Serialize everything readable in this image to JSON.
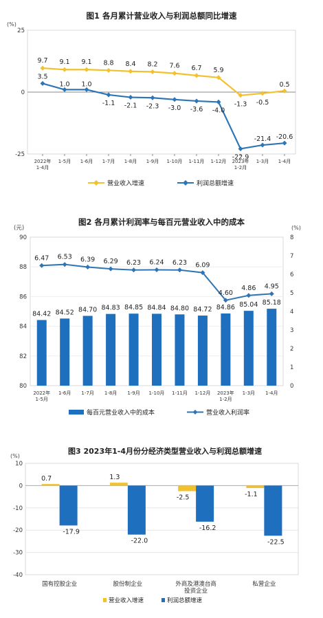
{
  "colors": {
    "revenue": "#f2c12e",
    "profit": "#2e75b6",
    "bar_blue": "#1f6fbf",
    "grid": "#d9d9d9",
    "axis": "#888888"
  },
  "chart_data": [
    {
      "type": "line",
      "title": "图1  各月累计营业收入与利润总额同比增速",
      "yunit": "(%)",
      "ylim": [
        -25,
        25
      ],
      "yticks": [
        "25",
        "0",
        "-25"
      ],
      "categories": [
        {
          "l1": "2022年",
          "l2": "1-4月"
        },
        {
          "l1": "1-5月",
          "l2": ""
        },
        {
          "l1": "1-6月",
          "l2": ""
        },
        {
          "l1": "1-7月",
          "l2": ""
        },
        {
          "l1": "1-8月",
          "l2": ""
        },
        {
          "l1": "1-9月",
          "l2": ""
        },
        {
          "l1": "1-10月",
          "l2": ""
        },
        {
          "l1": "1-11月",
          "l2": ""
        },
        {
          "l1": "1-12月",
          "l2": ""
        },
        {
          "l1": "2023年",
          "l2": "1-2月"
        },
        {
          "l1": "1-3月",
          "l2": ""
        },
        {
          "l1": "1-4月",
          "l2": ""
        }
      ],
      "series": [
        {
          "name": "营业收入增速",
          "values": [
            9.7,
            9.1,
            9.1,
            8.8,
            8.4,
            8.2,
            7.6,
            6.7,
            5.9,
            -1.3,
            -0.5,
            0.5
          ],
          "labels": [
            "9.7",
            "9.1",
            "9.1",
            "8.8",
            "8.4",
            "8.2",
            "7.6",
            "6.7",
            "5.9",
            "-1.3",
            "-0.5",
            "0.5"
          ]
        },
        {
          "name": "利润总额增速",
          "values": [
            3.5,
            1.0,
            1.0,
            -1.1,
            -2.1,
            -2.3,
            -3.0,
            -3.6,
            -4.0,
            -22.9,
            -21.4,
            -20.6
          ],
          "labels": [
            "3.5",
            "1.0",
            "1.0",
            "-1.1",
            "-2.1",
            "-2.3",
            "-3.0",
            "-3.6",
            "-4.0",
            "-22.9",
            "-21.4",
            "-20.6"
          ]
        }
      ],
      "legend": "bottom"
    },
    {
      "type": "bar+line",
      "title": "图2  各月累计利润率与每百元营业收入中的成本",
      "yunit_left": "(元)",
      "yunit_right": "(%)",
      "ylim_left": [
        80,
        90
      ],
      "ylim_right": [
        0,
        8
      ],
      "yticks_left": [
        "90",
        "88",
        "86",
        "84",
        "82",
        "80"
      ],
      "yticks_right": [
        "8",
        "7",
        "6",
        "5",
        "4",
        "3",
        "2",
        "1",
        "0"
      ],
      "categories": [
        {
          "l1": "2022年",
          "l2": "1-5月"
        },
        {
          "l1": "1-6月",
          "l2": ""
        },
        {
          "l1": "1-7月",
          "l2": ""
        },
        {
          "l1": "1-8月",
          "l2": ""
        },
        {
          "l1": "1-9月",
          "l2": ""
        },
        {
          "l1": "1-10月",
          "l2": ""
        },
        {
          "l1": "1-11月",
          "l2": ""
        },
        {
          "l1": "1-12月",
          "l2": ""
        },
        {
          "l1": "2023年",
          "l2": "1-2月"
        },
        {
          "l1": "1-3月",
          "l2": ""
        },
        {
          "l1": "1-4月",
          "l2": ""
        }
      ],
      "series": [
        {
          "name": "每百元营业收入中的成本",
          "values": [
            84.42,
            84.52,
            84.7,
            84.83,
            84.85,
            84.84,
            84.8,
            84.72,
            84.86,
            85.04,
            85.18
          ],
          "labels": [
            "84.42",
            "84.52",
            "84.70",
            "84.83",
            "84.85",
            "84.84",
            "84.80",
            "84.72",
            "84.86",
            "85.04",
            "85.18"
          ]
        },
        {
          "name": "营业收入利润率",
          "values": [
            6.47,
            6.53,
            6.39,
            6.29,
            6.23,
            6.24,
            6.23,
            6.09,
            4.6,
            4.86,
            4.95
          ],
          "labels": [
            "6.47",
            "6.53",
            "6.39",
            "6.29",
            "6.23",
            "6.24",
            "6.23",
            "6.09",
            "4.60",
            "4.86",
            "4.95"
          ]
        }
      ],
      "legend": "bottom"
    },
    {
      "type": "bar",
      "title": "图3  2023年1-4月份分经济类型营业收入与利润总额增速",
      "yunit": "(%)",
      "ylim": [
        -40,
        10
      ],
      "yticks": [
        "10",
        "0",
        "-10",
        "-20",
        "-30",
        "-40"
      ],
      "categories": [
        {
          "l1": "国有控股企业",
          "l2": ""
        },
        {
          "l1": "股份制企业",
          "l2": ""
        },
        {
          "l1": "外商及港澳台商",
          "l2": "投资企业"
        },
        {
          "l1": "私营企业",
          "l2": ""
        }
      ],
      "series": [
        {
          "name": "营业收入增速",
          "values": [
            0.7,
            1.3,
            -2.5,
            -1.1
          ],
          "labels": [
            "0.7",
            "1.3",
            "-2.5",
            "-1.1"
          ]
        },
        {
          "name": "利润总额增速",
          "values": [
            -17.9,
            -22.0,
            -16.2,
            -22.5
          ],
          "labels": [
            "-17.9",
            "-22.0",
            "-16.2",
            "-22.5"
          ]
        }
      ],
      "legend": "bottom"
    }
  ]
}
